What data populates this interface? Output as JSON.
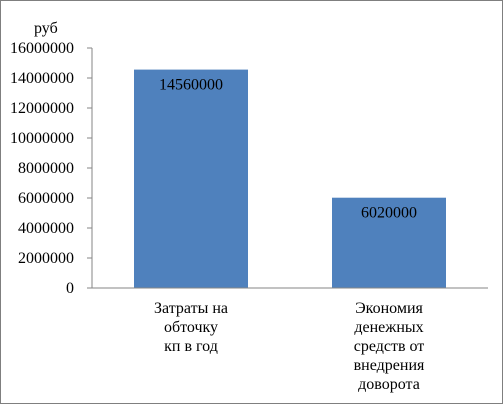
{
  "chart_data": {
    "type": "bar",
    "ylabel": "руб",
    "ylim": [
      0,
      16000000
    ],
    "yticks": [
      0,
      2000000,
      4000000,
      6000000,
      8000000,
      10000000,
      12000000,
      14000000,
      16000000
    ],
    "grid": false,
    "categories": [
      [
        "Затраты на",
        "обточку",
        "кп в год"
      ],
      [
        "Экономия",
        "денежных",
        "средств от",
        "внедрения",
        "доворота"
      ]
    ],
    "values": [
      14560000,
      6020000
    ],
    "data_labels": [
      "14560000",
      "6020000"
    ],
    "bar_color": "#4f81bd"
  }
}
